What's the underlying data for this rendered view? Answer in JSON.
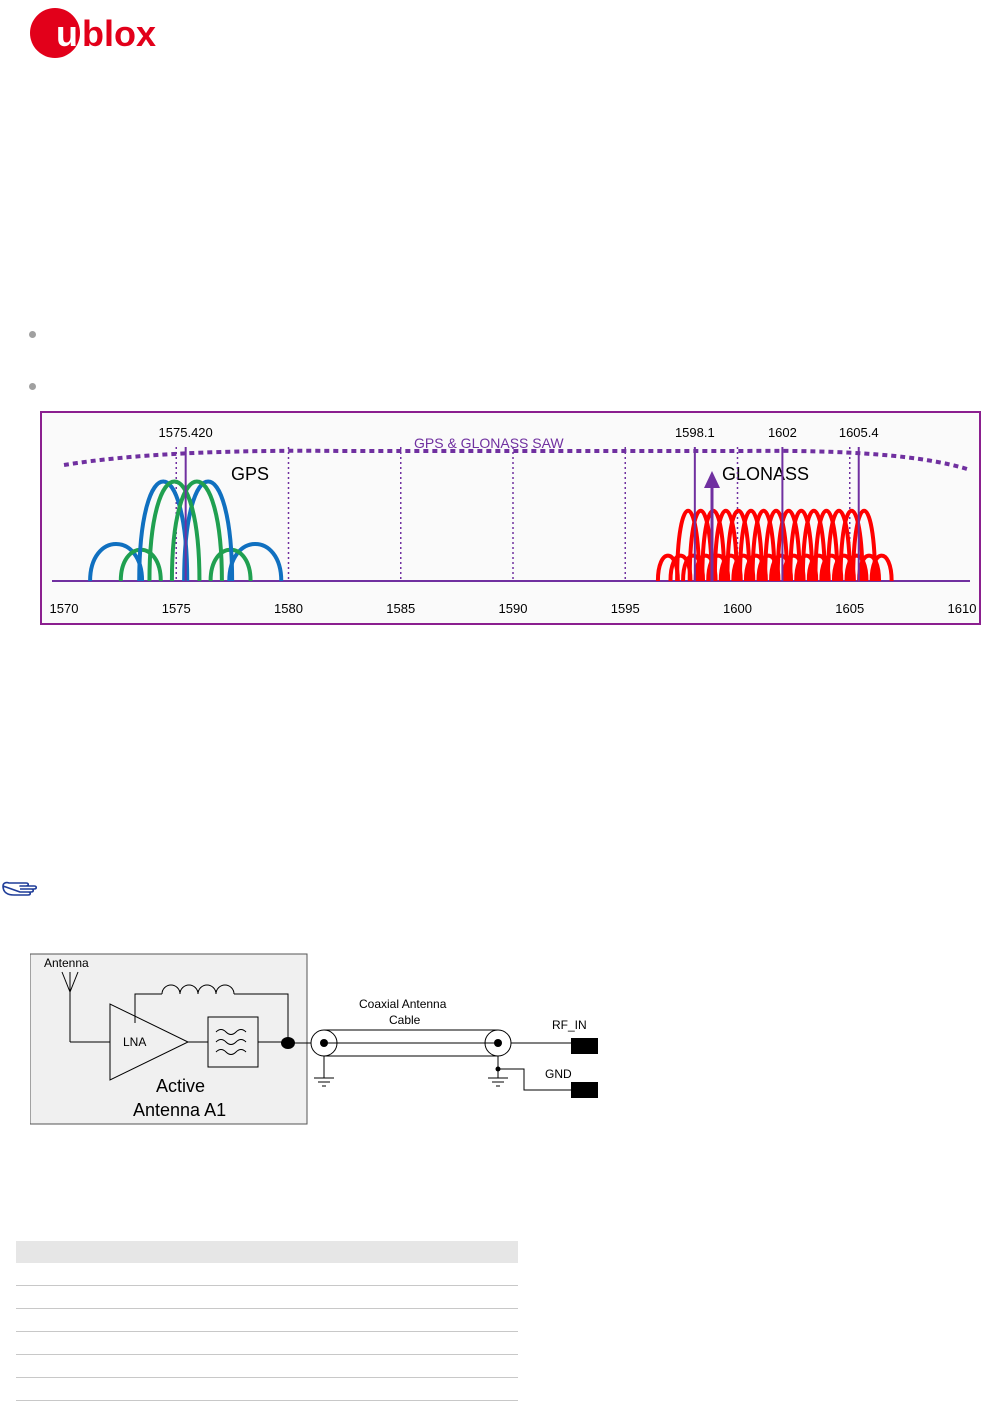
{
  "logo": {
    "text": "ublox",
    "u_letter": "u",
    "rest": "blox",
    "brand_color": "#e2001a"
  },
  "spectrum_chart": {
    "saw_label": "GPS & GLONASS SAW",
    "gps_label": "GPS",
    "glonass_label": "GLONASS",
    "freq_labels": [
      "1575.420",
      "1598.1",
      "1602",
      "1605.4"
    ],
    "axis_ticks": [
      "1570",
      "1575",
      "1580",
      "1585",
      "1590",
      "1595",
      "1600",
      "1605",
      "1610"
    ],
    "colors": {
      "frame": "#8b1f8f",
      "saw": "#7030a0",
      "gps_blue": "#1070c0",
      "gps_green": "#20a050",
      "glonass": "#ff0000",
      "marker": "#7030a0"
    }
  },
  "chart_data": {
    "type": "line",
    "x_ticks": [
      1570,
      1575,
      1580,
      1585,
      1590,
      1595,
      1600,
      1605,
      1610
    ],
    "xlim": [
      1570,
      1610
    ],
    "markers": [
      1575.42,
      1598.1,
      1602,
      1605.4
    ],
    "series": [
      {
        "name": "GPS",
        "center": 1575.42
      },
      {
        "name": "GLONASS",
        "range": [
          1598.1,
          1605.4
        ]
      }
    ],
    "annotations": [
      "GPS & GLONASS SAW"
    ]
  },
  "diagram": {
    "antenna_label": "Antenna",
    "lna_label": "LNA",
    "active_label_line1": "Active",
    "active_label_line2": "Antenna A1",
    "cable_label_line1": "Coaxial Antenna",
    "cable_label_line2": "Cable",
    "rf_in_label": "RF_IN",
    "gnd_label": "GND"
  },
  "table": {
    "rows": 6
  }
}
